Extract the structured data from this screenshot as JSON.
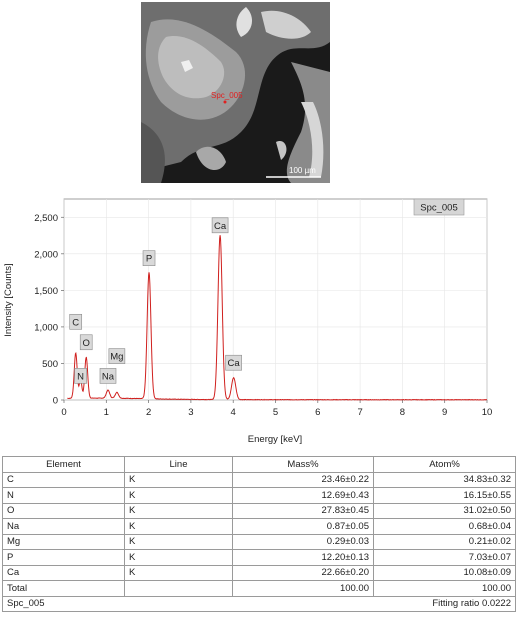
{
  "image": {
    "scale_label": "100 µm",
    "spot_label": "Spc_005"
  },
  "chart_data": {
    "type": "line",
    "spectrum_label": "Spc_005",
    "xlabel": "Energy [keV]",
    "ylabel": "Intensity [Counts]",
    "xlim": [
      0,
      10
    ],
    "ylim": [
      0,
      2750
    ],
    "x_ticks": [
      0,
      1,
      2,
      3,
      4,
      5,
      6,
      7,
      8,
      9,
      10
    ],
    "y_ticks": [
      0,
      500,
      1000,
      1500,
      2000,
      2500
    ],
    "y_tick_labels": [
      "0",
      "500",
      "1,000",
      "1,500",
      "2,000",
      "2,500"
    ],
    "line_color": "#d0201e",
    "peaks": [
      {
        "label": "C",
        "energy": 0.277,
        "counts": 620,
        "width": 0.035
      },
      {
        "label": "N",
        "energy": 0.392,
        "counts": 260,
        "width": 0.03
      },
      {
        "label": "O",
        "energy": 0.525,
        "counts": 560,
        "width": 0.035
      },
      {
        "label": "Na",
        "energy": 1.04,
        "counts": 110,
        "width": 0.04
      },
      {
        "label": "Mg",
        "energy": 1.25,
        "counts": 80,
        "width": 0.04
      },
      {
        "label": "P",
        "energy": 2.01,
        "counts": 1730,
        "width": 0.045
      },
      {
        "label": "Ca",
        "energy": 3.69,
        "counts": 2250,
        "width": 0.05
      },
      {
        "label": "Ca",
        "energy": 4.01,
        "counts": 300,
        "width": 0.05
      }
    ],
    "peak_labels": [
      {
        "label": "C",
        "energy": 0.277,
        "counts": 1070
      },
      {
        "label": "N",
        "energy": 0.392,
        "counts": 330
      },
      {
        "label": "O",
        "energy": 0.525,
        "counts": 790
      },
      {
        "label": "Na",
        "energy": 1.04,
        "counts": 330
      },
      {
        "label": "Mg",
        "energy": 1.25,
        "counts": 600
      },
      {
        "label": "P",
        "energy": 2.01,
        "counts": 1940
      },
      {
        "label": "Ca",
        "energy": 3.69,
        "counts": 2390
      },
      {
        "label": "Ca",
        "energy": 4.01,
        "counts": 510
      }
    ]
  },
  "table": {
    "headers": [
      "Element",
      "Line",
      "Mass%",
      "Atom%"
    ],
    "rows": [
      {
        "element": "C",
        "line": "K",
        "mass": "23.46±0.22",
        "atom": "34.83±0.32"
      },
      {
        "element": "N",
        "line": "K",
        "mass": "12.69±0.43",
        "atom": "16.15±0.55"
      },
      {
        "element": "O",
        "line": "K",
        "mass": "27.83±0.45",
        "atom": "31.02±0.50"
      },
      {
        "element": "Na",
        "line": "K",
        "mass": "0.87±0.05",
        "atom": "0.68±0.04"
      },
      {
        "element": "Mg",
        "line": "K",
        "mass": "0.29±0.03",
        "atom": "0.21±0.02"
      },
      {
        "element": "P",
        "line": "K",
        "mass": "12.20±0.13",
        "atom": "7.03±0.07"
      },
      {
        "element": "Ca",
        "line": "K",
        "mass": "22.66±0.20",
        "atom": "10.08±0.09"
      },
      {
        "element": "Total",
        "line": "",
        "mass": "100.00",
        "atom": "100.00"
      }
    ],
    "footer_left": "Spc_005",
    "footer_right": "Fitting ratio 0.0222"
  }
}
